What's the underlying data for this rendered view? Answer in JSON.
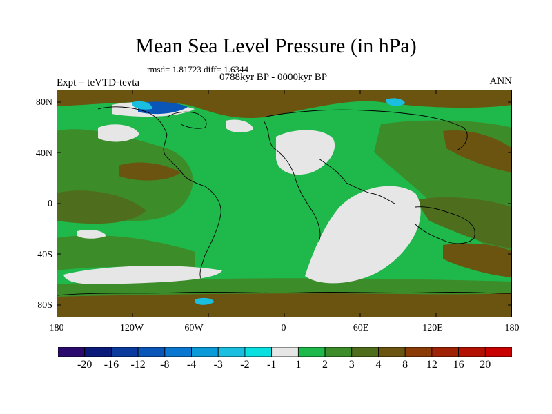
{
  "map": {
    "title": "Mean Sea Level Pressure (in hPa)",
    "stats": "rmsd= 1.81723  diff= 1.6344",
    "period": "0788kyr BP - 0000kyr BP",
    "expt": "Expt = teVTD-tevta",
    "season": "ANN",
    "y_ticks": [
      "80N",
      "40N",
      "0",
      "40S",
      "80S"
    ],
    "x_ticks": [
      "180",
      "120W",
      "60W",
      "0",
      "60E",
      "120E",
      "180"
    ]
  },
  "colorbar": {
    "colors": [
      "#2b0a6e",
      "#0a1a78",
      "#0a3a9c",
      "#0a55b8",
      "#0a78d0",
      "#0a9ad8",
      "#1abfe0",
      "#0ae0e0",
      "#e6e6e6",
      "#1fb84a",
      "#3c8c2a",
      "#4e6e1e",
      "#6b5410",
      "#8a3c06",
      "#a02204",
      "#b41002",
      "#c80000"
    ],
    "labels": [
      "-20",
      "-16",
      "-12",
      "-8",
      "-4",
      "-3",
      "-2",
      "-1",
      "1",
      "2",
      "3",
      "4",
      "8",
      "12",
      "16",
      "20"
    ]
  },
  "palette": {
    "ocean_green": "#1fb84a",
    "mid_green": "#3c8c2a",
    "olive": "#4e6e1e",
    "brown": "#6b5410",
    "light_gray": "#e6e6e6",
    "cyan": "#1abfe0",
    "blue": "#0a55b8"
  }
}
